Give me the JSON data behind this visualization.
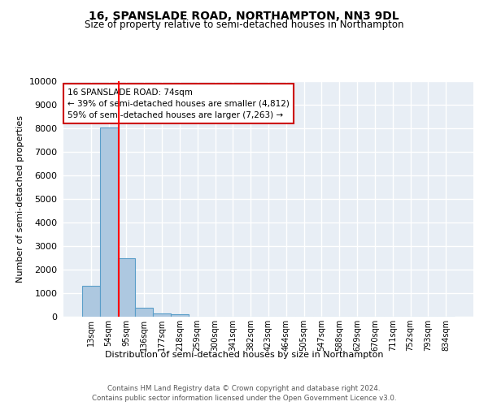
{
  "title": "16, SPANSLADE ROAD, NORTHAMPTON, NN3 9DL",
  "subtitle": "Size of property relative to semi-detached houses in Northampton",
  "xlabel_bottom": "Distribution of semi-detached houses by size in Northampton",
  "ylabel": "Number of semi-detached properties",
  "bin_labels": [
    "13sqm",
    "54sqm",
    "95sqm",
    "136sqm",
    "177sqm",
    "218sqm",
    "259sqm",
    "300sqm",
    "341sqm",
    "382sqm",
    "423sqm",
    "464sqm",
    "505sqm",
    "547sqm",
    "588sqm",
    "629sqm",
    "670sqm",
    "711sqm",
    "752sqm",
    "793sqm",
    "834sqm"
  ],
  "bar_values": [
    1300,
    8050,
    2500,
    380,
    150,
    100,
    0,
    0,
    0,
    0,
    0,
    0,
    0,
    0,
    0,
    0,
    0,
    0,
    0,
    0,
    0
  ],
  "bar_color": "#adc8e0",
  "bar_edge_color": "#5a9ec9",
  "property_line_x": 1.55,
  "annotation_title": "16 SPANSLADE ROAD: 74sqm",
  "annotation_line1": "← 39% of semi-detached houses are smaller (4,812)",
  "annotation_line2": "59% of semi-detached houses are larger (7,263) →",
  "annotation_box_color": "#cc0000",
  "ylim": [
    0,
    10000
  ],
  "yticks": [
    0,
    1000,
    2000,
    3000,
    4000,
    5000,
    6000,
    7000,
    8000,
    9000,
    10000
  ],
  "footer1": "Contains HM Land Registry data © Crown copyright and database right 2024.",
  "footer2": "Contains public sector information licensed under the Open Government Licence v3.0.",
  "bg_color": "#e8eef5",
  "grid_color": "#ffffff"
}
